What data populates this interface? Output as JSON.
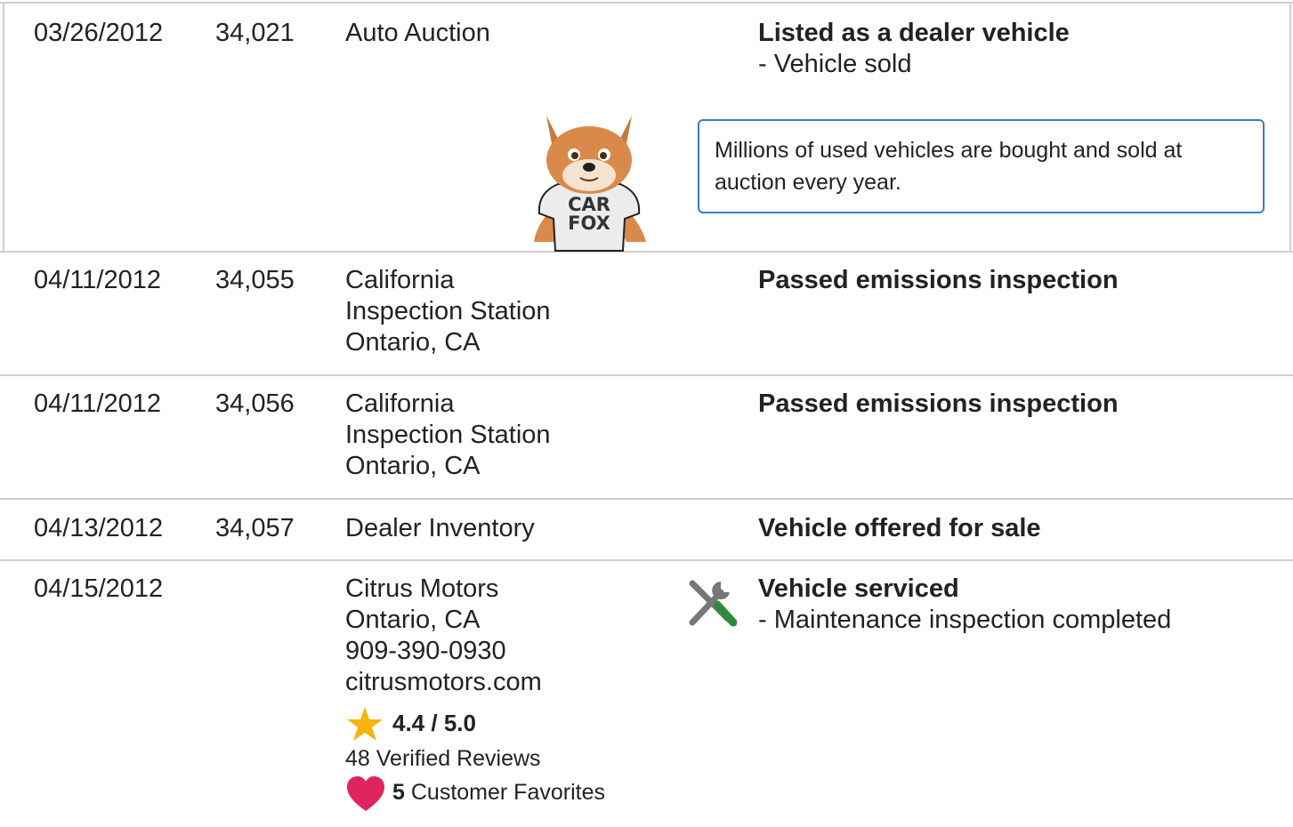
{
  "rows": [
    {
      "date": "03/26/2012",
      "mileage": "34,021",
      "source": [
        "Auto Auction"
      ],
      "comments": {
        "title": "Listed as a dealer vehicle",
        "details": [
          "- Vehicle sold"
        ]
      }
    },
    {
      "date": "04/11/2012",
      "mileage": "34,055",
      "source": [
        "California",
        "Inspection Station",
        "Ontario, CA"
      ],
      "comments": {
        "title": "Passed emissions inspection",
        "details": []
      }
    },
    {
      "date": "04/11/2012",
      "mileage": "34,056",
      "source": [
        "California",
        "Inspection Station",
        "Ontario, CA"
      ],
      "comments": {
        "title": "Passed emissions inspection",
        "details": []
      }
    },
    {
      "date": "04/13/2012",
      "mileage": "34,057",
      "source": [
        "Dealer Inventory"
      ],
      "comments": {
        "title": "Vehicle offered for sale",
        "details": []
      }
    },
    {
      "date": "04/15/2012",
      "mileage": null,
      "source": [
        "Citrus Motors",
        "Ontario, CA",
        "909-390-0930",
        "citrusmotors.com"
      ],
      "comments": {
        "title": "Vehicle serviced",
        "details": [
          "- Maintenance inspection completed"
        ]
      }
    }
  ],
  "callout": "Millions of used vehicles are bought and sold at auction every year.",
  "mascot_shirt": [
    "CAR",
    "FOX"
  ],
  "dealer": {
    "rating": "4.4 / 5.0",
    "reviews": "48 Verified Reviews",
    "favorites_count": "5",
    "favorites_label": "Customer Favorites"
  }
}
